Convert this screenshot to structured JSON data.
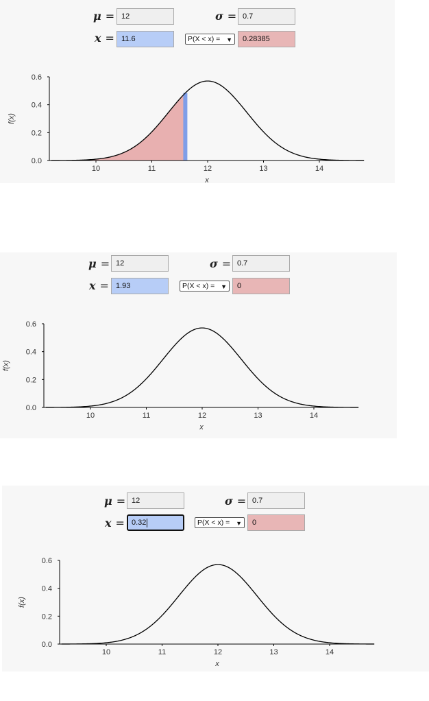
{
  "labels": {
    "mu": "μ",
    "sigma": "σ",
    "x": "x",
    "eq": "="
  },
  "panels": [
    {
      "mu": "12",
      "sigma": "0.7",
      "x_value": "11.6",
      "prob_option": "P(X < x) =",
      "result": "0.28385",
      "shaded_upper": 11.6,
      "x_focused": false
    },
    {
      "mu": "12",
      "sigma": "0.7",
      "x_value": "1.93",
      "prob_option": "P(X < x) =",
      "result": "0",
      "shaded_upper": null,
      "x_focused": false
    },
    {
      "mu": "12",
      "sigma": "0.7",
      "x_value": "0.32",
      "prob_option": "P(X < x) =",
      "result": "0",
      "shaded_upper": null,
      "x_focused": true
    }
  ],
  "chart_data": {
    "type": "area",
    "distribution": "normal",
    "mu": 12,
    "sigma": 0.7,
    "xlabel": "x",
    "ylabel": "f(x)",
    "xlim": [
      9.2,
      14.8
    ],
    "ylim": [
      0,
      0.6
    ],
    "x_ticks": [
      "10",
      "11",
      "12",
      "13",
      "14"
    ],
    "y_ticks": [
      "0.0",
      "0.2",
      "0.4",
      "0.6"
    ],
    "curve_color": "#000000",
    "shade_color": "#e8b0b0",
    "marker_color": "#7f9ee8",
    "grid": false
  }
}
